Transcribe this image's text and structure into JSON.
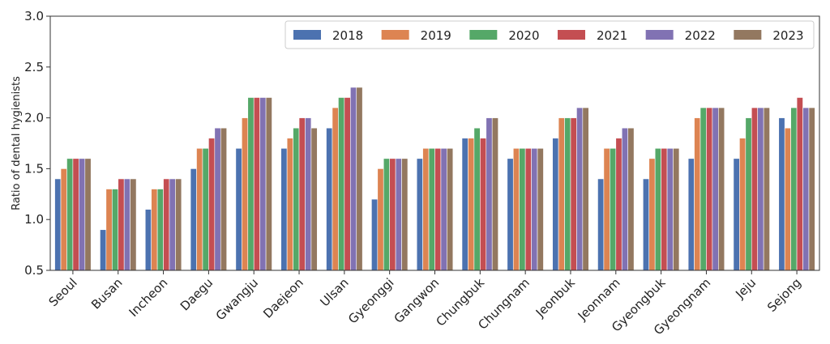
{
  "chart_data": {
    "type": "bar",
    "title": "",
    "xlabel": "",
    "ylabel": "Ratio of dental hygienists",
    "ylim": [
      0.5,
      3.0
    ],
    "yticks": [
      "0.5",
      "1.0",
      "1.5",
      "2.0",
      "2.5",
      "3.0"
    ],
    "grid": false,
    "legend_position": "top-right",
    "categories": [
      "Seoul",
      "Busan",
      "Incheon",
      "Daegu",
      "Gwangju",
      "Daejeon",
      "Ulsan",
      "Gyeonggi",
      "Gangwon",
      "Chungbuk",
      "Chungnam",
      "Jeonbuk",
      "Jeonnam",
      "Gyeongbuk",
      "Gyeongnam",
      "Jeju",
      "Sejong"
    ],
    "series": [
      {
        "name": "2018",
        "color": "#4c72b0",
        "values": [
          1.4,
          0.9,
          1.1,
          1.5,
          1.7,
          1.7,
          1.9,
          1.2,
          1.6,
          1.8,
          1.6,
          1.8,
          1.4,
          1.4,
          1.6,
          1.6,
          2.0
        ]
      },
      {
        "name": "2019",
        "color": "#dd8452",
        "values": [
          1.5,
          1.3,
          1.3,
          1.7,
          2.0,
          1.8,
          2.1,
          1.5,
          1.7,
          1.8,
          1.7,
          2.0,
          1.7,
          1.6,
          2.0,
          1.8,
          1.9
        ]
      },
      {
        "name": "2020",
        "color": "#55a868",
        "values": [
          1.6,
          1.3,
          1.3,
          1.7,
          2.2,
          1.9,
          2.2,
          1.6,
          1.7,
          1.9,
          1.7,
          2.0,
          1.7,
          1.7,
          2.1,
          2.0,
          2.1
        ]
      },
      {
        "name": "2021",
        "color": "#c44e52",
        "values": [
          1.6,
          1.4,
          1.4,
          1.8,
          2.2,
          2.0,
          2.2,
          1.6,
          1.7,
          1.8,
          1.7,
          2.0,
          1.8,
          1.7,
          2.1,
          2.1,
          2.2
        ]
      },
      {
        "name": "2022",
        "color": "#8172b3",
        "values": [
          1.6,
          1.4,
          1.4,
          1.9,
          2.2,
          2.0,
          2.3,
          1.6,
          1.7,
          2.0,
          1.7,
          2.1,
          1.9,
          1.7,
          2.1,
          2.1,
          2.1
        ]
      },
      {
        "name": "2023",
        "color": "#937860",
        "values": [
          1.6,
          1.4,
          1.4,
          1.9,
          2.2,
          1.9,
          2.3,
          1.6,
          1.7,
          2.0,
          1.7,
          2.1,
          1.9,
          1.7,
          2.1,
          2.1,
          2.1
        ]
      }
    ]
  }
}
